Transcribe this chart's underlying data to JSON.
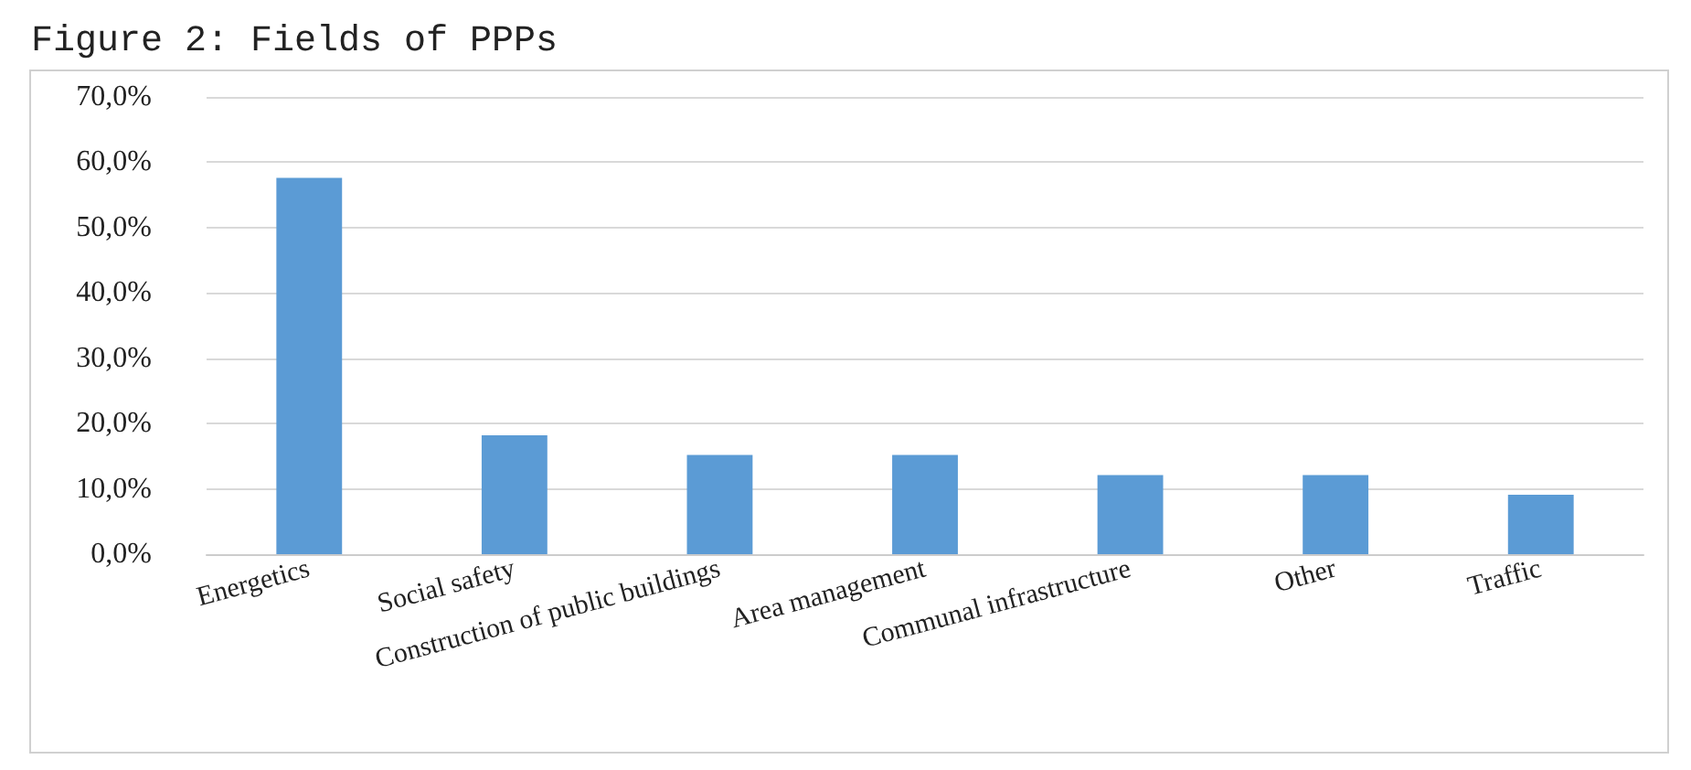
{
  "chart_data": {
    "type": "bar",
    "title": "Figure 2: Fields of PPPs",
    "categories": [
      "Energetics",
      "Social safety",
      "Construction of public buildings",
      "Area management",
      "Communal infrastructure",
      "Other",
      "Traffic"
    ],
    "values": [
      57.6,
      18.2,
      15.2,
      15.2,
      12.1,
      12.1,
      9.1
    ],
    "color": "#5b9bd5",
    "ylim": [
      0,
      70
    ],
    "yticks": [
      {
        "value": 0,
        "label": "0,0%"
      },
      {
        "value": 10,
        "label": "10,0%"
      },
      {
        "value": 20,
        "label": "20,0%"
      },
      {
        "value": 30,
        "label": "30,0%"
      },
      {
        "value": 40,
        "label": "40,0%"
      },
      {
        "value": 50,
        "label": "50,0%"
      },
      {
        "value": 60,
        "label": "60,0%"
      },
      {
        "value": 70,
        "label": "70,0%"
      }
    ],
    "grid": "y"
  }
}
